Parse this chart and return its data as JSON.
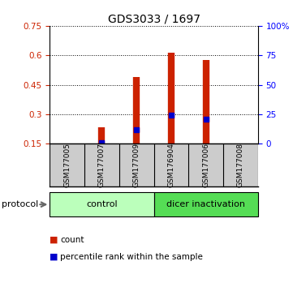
{
  "title": "GDS3033 / 1697",
  "samples": [
    "GSM177005",
    "GSM177007",
    "GSM177009",
    "GSM176904",
    "GSM177006",
    "GSM177008"
  ],
  "red_values": [
    0.0,
    0.235,
    0.49,
    0.615,
    0.575,
    0.0
  ],
  "blue_values": [
    null,
    0.155,
    0.22,
    0.295,
    0.275,
    null
  ],
  "ylim_left": [
    0.15,
    0.75
  ],
  "ylim_right": [
    0,
    100
  ],
  "yticks_left": [
    0.15,
    0.3,
    0.45,
    0.6,
    0.75
  ],
  "yticks_right": [
    0,
    25,
    50,
    75,
    100
  ],
  "ytick_labels_left": [
    "0.15",
    "0.3",
    "0.45",
    "0.6",
    "0.75"
  ],
  "ytick_labels_right": [
    "0",
    "25",
    "50",
    "75",
    "100%"
  ],
  "groups": [
    {
      "label": "control",
      "indices": [
        0,
        1,
        2
      ],
      "color": "#bbffbb"
    },
    {
      "label": "dicer inactivation",
      "indices": [
        3,
        4,
        5
      ],
      "color": "#55dd55"
    }
  ],
  "protocol_label": "protocol",
  "legend_count_label": "count",
  "legend_percentile_label": "percentile rank within the sample",
  "red_color": "#cc2200",
  "blue_color": "#0000cc",
  "background_color": "#ffffff",
  "title_fontsize": 10,
  "tick_fontsize": 7.5,
  "sample_fontsize": 6.5,
  "group_fontsize": 8
}
